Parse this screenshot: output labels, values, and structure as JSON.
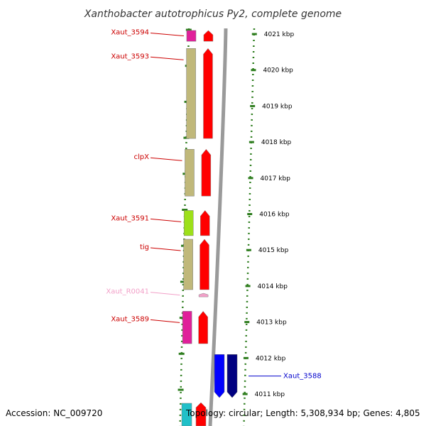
{
  "title": "Xanthobacter autotrophicus Py2, complete genome",
  "footer": {
    "accession": "Accession: NC_009720",
    "topology": "Topology: circular; Length: 5,308,934 bp; Genes: 4,805"
  },
  "colors": {
    "backbone": "#9a9a9a",
    "tick": "#2e7d1e",
    "label_red": "#cc0000",
    "label_pink": "#f2a0c8",
    "label_blue": "#0000cc"
  },
  "ticks": [
    {
      "kbp": 4021,
      "label": "4021 kbp"
    },
    {
      "kbp": 4020,
      "label": "4020 kbp"
    },
    {
      "kbp": 4019,
      "label": "4019 kbp"
    },
    {
      "kbp": 4018,
      "label": "4018 kbp"
    },
    {
      "kbp": 4017,
      "label": "4017 kbp"
    },
    {
      "kbp": 4016,
      "label": "4016 kbp"
    },
    {
      "kbp": 4015,
      "label": "4015 kbp"
    },
    {
      "kbp": 4014,
      "label": "4014 kbp"
    },
    {
      "kbp": 4013,
      "label": "4013 kbp"
    },
    {
      "kbp": 4012,
      "label": "4012 kbp"
    },
    {
      "kbp": 4011,
      "label": "4011 kbp"
    }
  ],
  "genes": [
    {
      "label": "Xaut_3594",
      "start_kbp": 4020.8,
      "end_kbp": 4021.1,
      "cog": "#e0209a",
      "strand": "#ff0000",
      "label_color": "#cc0000"
    },
    {
      "label": "Xaut_3593",
      "start_kbp": 4018.1,
      "end_kbp": 4020.6,
      "cog": "#c0b87a",
      "strand": "#ff0000",
      "label_color": "#cc0000"
    },
    {
      "label": "clpX",
      "start_kbp": 4016.5,
      "end_kbp": 4017.8,
      "cog": "#c0b87a",
      "strand": "#ff0000",
      "label_color": "#cc0000"
    },
    {
      "label": "Xaut_3591",
      "start_kbp": 4015.4,
      "end_kbp": 4016.1,
      "cog": "#9de01a",
      "strand": "#ff0000",
      "label_color": "#cc0000"
    },
    {
      "label": "tig",
      "start_kbp": 4013.9,
      "end_kbp": 4015.3,
      "cog": "#c0b87a",
      "strand": "#ff0000",
      "label_color": "#cc0000"
    },
    {
      "label": "Xaut_R0041",
      "start_kbp": 4013.7,
      "end_kbp": 4013.8,
      "cog": "",
      "strand": "#f2a0c8",
      "label_color": "#f2a0c8"
    },
    {
      "label": "Xaut_3589",
      "start_kbp": 4012.4,
      "end_kbp": 4013.3,
      "cog": "#e0209a",
      "strand": "#ff0000",
      "label_color": "#cc0000"
    },
    {
      "label": "Xaut_3588",
      "start_kbp": 4010.9,
      "end_kbp": 4012.1,
      "cog": "#000080",
      "strand": "#0000ff",
      "label_color": "#0000cc"
    }
  ]
}
